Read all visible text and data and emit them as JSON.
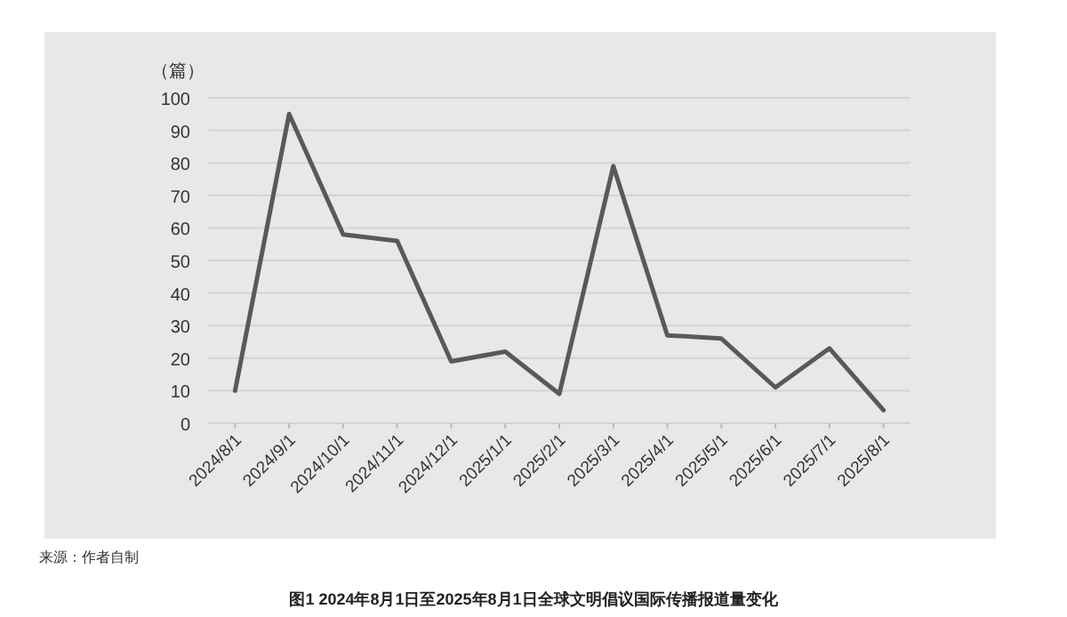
{
  "chart_data": {
    "type": "line",
    "title": "图1 2024年8月1日至2025年8月1日全球文明倡议国际传播报道量变化",
    "ylabel": "（篇）",
    "categories": [
      "2024/8/1",
      "2024/9/1",
      "2024/10/1",
      "2024/11/1",
      "2024/12/1",
      "2025/1/1",
      "2025/2/1",
      "2025/3/1",
      "2025/4/1",
      "2025/5/1",
      "2025/6/1",
      "2025/7/1",
      "2025/8/1"
    ],
    "series": [
      {
        "color": "#595959",
        "values": [
          10,
          95,
          58,
          56,
          19,
          22,
          9,
          79,
          27,
          26,
          11,
          23,
          4
        ]
      }
    ],
    "ylim": [
      0,
      100
    ],
    "yticks": [
      0,
      10,
      20,
      30,
      40,
      50,
      60,
      70,
      80,
      90,
      100
    ],
    "grid": "y",
    "marker": "none",
    "line_style": "solid",
    "annotations": [
      "来源：作者自制"
    ]
  }
}
